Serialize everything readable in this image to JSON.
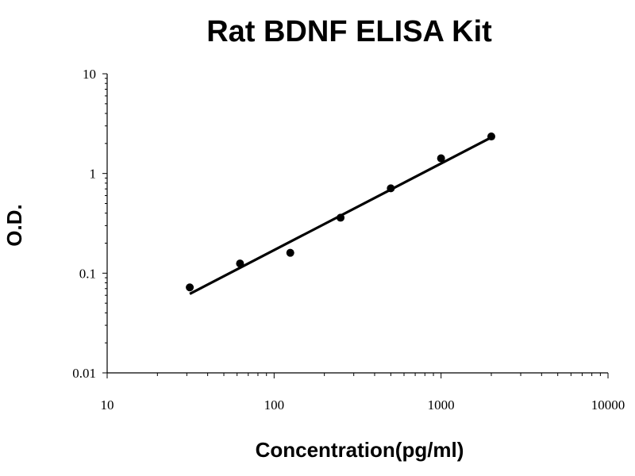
{
  "chart_data": {
    "type": "scatter",
    "title": "Rat BDNF ELISA Kit",
    "xlabel": "Concentration(pg/ml)",
    "ylabel": "O.D.",
    "x_scale": "log",
    "y_scale": "log",
    "xlim": [
      10,
      10000
    ],
    "ylim": [
      0.01,
      10
    ],
    "x_tick_labels": [
      "10",
      "100",
      "1000",
      "10000"
    ],
    "y_tick_labels": [
      "0.01",
      "0.1",
      "1",
      "10"
    ],
    "grid": false,
    "legend": "none",
    "series": [
      {
        "points": [
          {
            "x": 31.25,
            "y": 0.072
          },
          {
            "x": 62.5,
            "y": 0.125
          },
          {
            "x": 125,
            "y": 0.16
          },
          {
            "x": 250,
            "y": 0.36
          },
          {
            "x": 500,
            "y": 0.71
          },
          {
            "x": 1000,
            "y": 1.42
          },
          {
            "x": 2000,
            "y": 2.35
          }
        ],
        "trendline": {
          "type": "power",
          "x": [
            31.25,
            2000
          ],
          "y": [
            0.062,
            2.3
          ]
        },
        "color": "#000000"
      }
    ]
  }
}
